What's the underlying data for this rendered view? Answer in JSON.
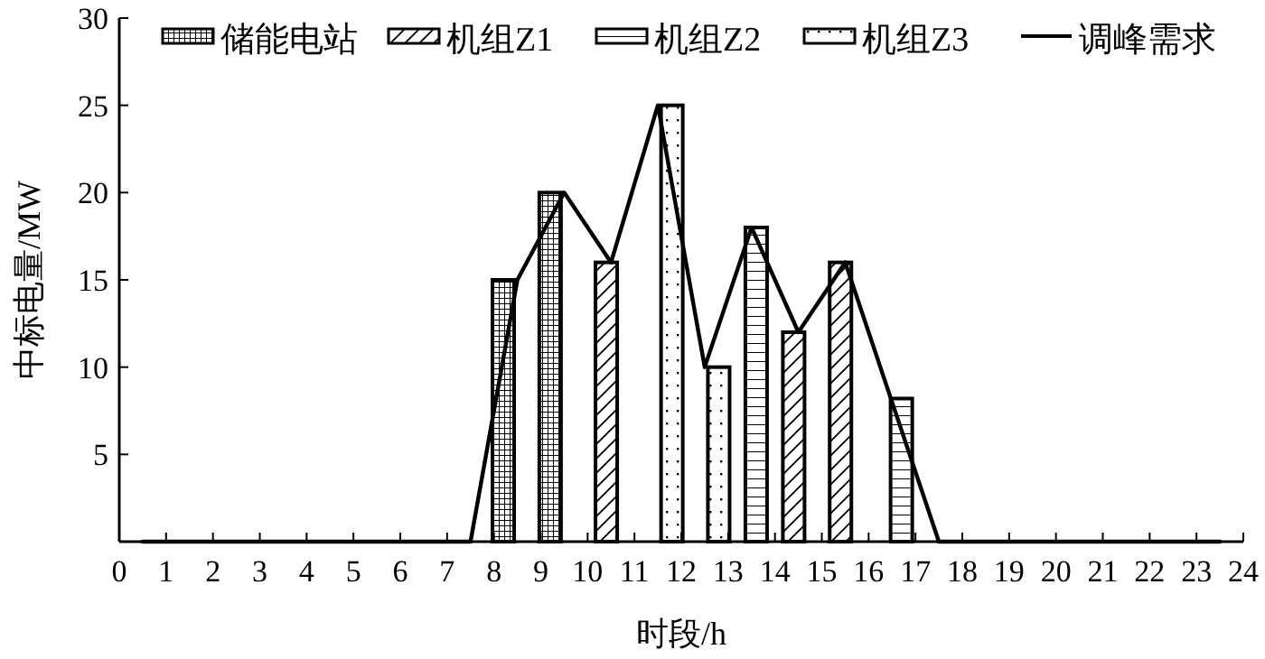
{
  "chart_data": {
    "type": "bar",
    "xlabel": "时段/h",
    "ylabel": "中标电量/MW",
    "xlim": [
      0,
      24
    ],
    "xticks": [
      0,
      1,
      2,
      3,
      4,
      5,
      6,
      7,
      8,
      9,
      10,
      11,
      12,
      13,
      14,
      15,
      16,
      17,
      18,
      19,
      20,
      21,
      22,
      23,
      24
    ],
    "ylim": [
      0,
      30
    ],
    "yticks": [
      5,
      10,
      15,
      20,
      25,
      30
    ],
    "legend": "top",
    "grid": false,
    "series": [
      {
        "name": "储能电站",
        "color": "#000000",
        "x": [
          8.2,
          9.2
        ],
        "values": [
          15,
          20
        ]
      },
      {
        "name": "机组Z1",
        "color": "#000000",
        "x": [
          10.4,
          14.4,
          15.4
        ],
        "values": [
          16,
          12,
          16
        ]
      },
      {
        "name": "机组Z2",
        "color": "#000000",
        "x": [
          13.6,
          16.7
        ],
        "values": [
          18,
          8.2
        ]
      },
      {
        "name": "机组Z3",
        "color": "#000000",
        "x": [
          11.8,
          12.8
        ],
        "values": [
          25,
          10
        ]
      },
      {
        "name": "调峰需求",
        "type": "line",
        "color": "#000000",
        "x": [
          0.5,
          1.5,
          2.5,
          3.5,
          4.5,
          5.5,
          6.5,
          7.5,
          8.5,
          9.5,
          10.5,
          11.5,
          12.5,
          13.5,
          14.5,
          15.5,
          16.5,
          17.5,
          18.5,
          19.5,
          20.5,
          21.5,
          22.5,
          23.5
        ],
        "values": [
          0,
          0,
          0,
          0,
          0,
          0,
          0,
          0,
          15,
          20,
          16,
          25,
          10,
          18,
          12,
          16,
          8,
          0,
          0,
          0,
          0,
          0,
          0,
          0
        ]
      }
    ]
  }
}
